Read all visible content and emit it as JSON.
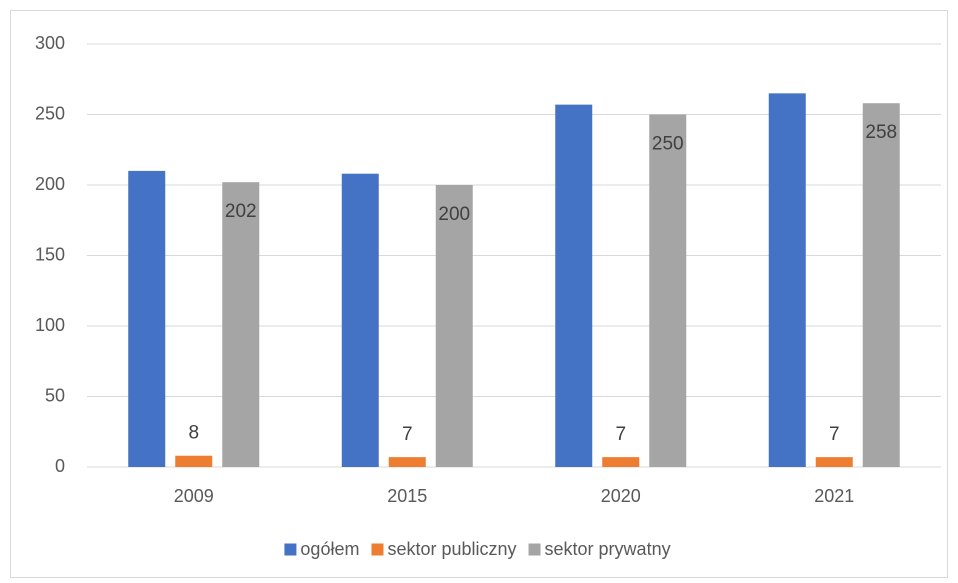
{
  "chart_data": {
    "type": "bar",
    "categories": [
      "2009",
      "2015",
      "2020",
      "2021"
    ],
    "series": [
      {
        "name": "ogółem",
        "color": "#4472c4",
        "values": [
          210,
          208,
          257,
          265
        ]
      },
      {
        "name": "sektor publiczny",
        "color": "#ed7d31",
        "values": [
          8,
          7,
          7,
          7
        ],
        "data_labels": true
      },
      {
        "name": "sektor prywatny",
        "color": "#a5a5a5",
        "values": [
          202,
          200,
          250,
          258
        ],
        "data_labels": true
      }
    ],
    "ylim": [
      0,
      300
    ],
    "yticks": [
      0,
      50,
      100,
      150,
      200,
      250,
      300
    ],
    "grid": true,
    "legend": "bottom"
  }
}
